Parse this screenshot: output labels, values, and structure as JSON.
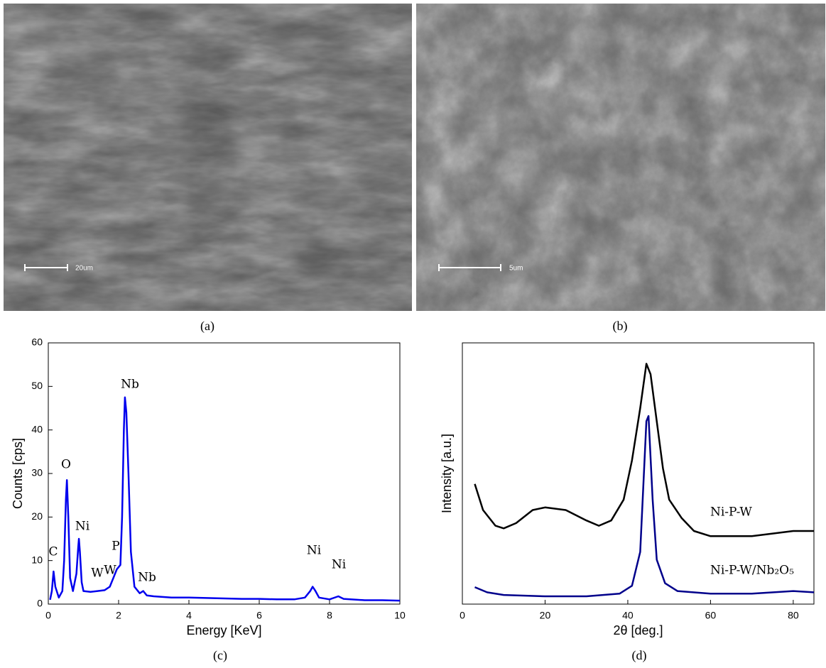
{
  "panels": [
    {
      "caption": "(a)",
      "scale_bar": "20um"
    },
    {
      "caption": "(b)",
      "scale_bar": "5um"
    }
  ],
  "chart_data": [
    {
      "type": "line",
      "caption": "(c)",
      "x_label": "Energy [KeV]",
      "y_label": "Counts [cps]",
      "xlim": [
        0,
        10
      ],
      "ylim": [
        0,
        60
      ],
      "xticks": [
        0,
        2,
        4,
        6,
        8,
        10
      ],
      "yticks": [
        0,
        10,
        20,
        30,
        40,
        50,
        60
      ],
      "annotations": [
        "C",
        "O",
        "Ni",
        "W",
        "W",
        "P",
        "Nb",
        "Nb",
        "Ni",
        "Ni"
      ],
      "series": [
        {
          "color": "#0000ee",
          "x": [
            0.05,
            0.1,
            0.15,
            0.2,
            0.3,
            0.4,
            0.45,
            0.5,
            0.53,
            0.57,
            0.62,
            0.7,
            0.8,
            0.85,
            0.87,
            0.9,
            0.95,
            1.0,
            1.2,
            1.4,
            1.6,
            1.75,
            1.85,
            1.95,
            2.05,
            2.1,
            2.15,
            2.18,
            2.22,
            2.28,
            2.35,
            2.45,
            2.6,
            2.7,
            2.8,
            3,
            3.5,
            4,
            4.5,
            5,
            5.5,
            6,
            6.5,
            7,
            7.3,
            7.45,
            7.52,
            7.6,
            7.7,
            8,
            8.25,
            8.4,
            9,
            9.5,
            10
          ],
          "values": [
            1,
            3,
            7.5,
            4,
            1.5,
            3,
            10,
            24,
            28.5,
            20,
            6,
            3,
            7,
            13,
            15,
            12,
            5,
            3,
            2.8,
            3,
            3.2,
            4,
            6,
            8,
            9,
            20,
            40,
            47.5,
            44,
            30,
            12,
            4,
            2.5,
            3,
            2,
            1.8,
            1.5,
            1.5,
            1.4,
            1.3,
            1.2,
            1.2,
            1.1,
            1.1,
            1.5,
            3,
            4,
            3,
            1.5,
            1.1,
            1.8,
            1.2,
            0.9,
            0.9,
            0.8
          ]
        }
      ]
    },
    {
      "type": "line",
      "caption": "(d)",
      "x_label": "2θ [deg.]",
      "y_label": "Intensity [a.u.]",
      "xlim": [
        0,
        85
      ],
      "ylim": [
        0,
        100
      ],
      "xticks": [
        0,
        20,
        40,
        60,
        80
      ],
      "series": [
        {
          "name": "Ni-P-W",
          "color": "#000000",
          "x": [
            3,
            5,
            8,
            10,
            13,
            17,
            20,
            25,
            30,
            33,
            36,
            39,
            41,
            43,
            44.5,
            45.5,
            47,
            48.5,
            50,
            53,
            56,
            60,
            65,
            70,
            75,
            80,
            85
          ],
          "values": [
            46,
            36,
            30,
            29,
            31,
            36,
            37,
            36,
            32,
            30,
            32,
            40,
            55,
            75,
            92,
            88,
            70,
            52,
            40,
            33,
            28,
            26,
            26,
            26,
            27,
            28,
            28
          ]
        },
        {
          "name": "Ni-P-W/Nb₂O₅",
          "color": "#00008b",
          "x": [
            3,
            6,
            10,
            20,
            30,
            38,
            41,
            43,
            44.5,
            45,
            46,
            47,
            49,
            52,
            60,
            70,
            80,
            85
          ],
          "values": [
            6.5,
            4.5,
            3.5,
            3,
            3,
            4,
            7,
            20,
            70,
            72,
            40,
            17,
            8,
            5,
            4,
            4,
            5,
            4.5
          ]
        }
      ]
    }
  ]
}
